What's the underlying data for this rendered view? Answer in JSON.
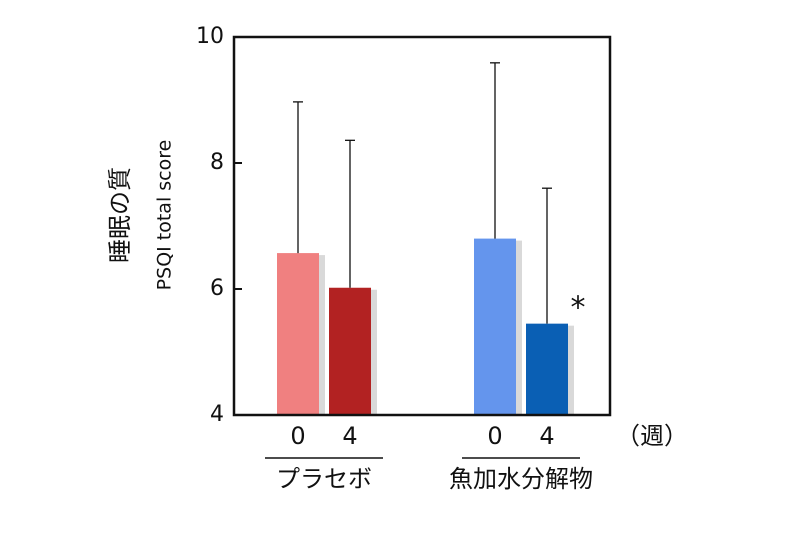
{
  "chart_data": {
    "type": "bar",
    "ylabel_main": "睡眠の質",
    "ylabel_sub": "PSQI total score",
    "ylim": [
      4,
      10
    ],
    "yticks": [
      4,
      6,
      8,
      10
    ],
    "ytick_labels": [
      "4",
      "6",
      "8",
      "10"
    ],
    "x_unit": "（週）",
    "grid": false,
    "groups": [
      {
        "name": "プラセボ",
        "bars": [
          {
            "week": "0",
            "value": 6.57,
            "error_upper": 8.97,
            "color": "#F08080",
            "significance": ""
          },
          {
            "week": "4",
            "value": 6.02,
            "error_upper": 8.36,
            "color": "#B22222",
            "significance": ""
          }
        ]
      },
      {
        "name": "魚加水分解物",
        "bars": [
          {
            "week": "0",
            "value": 6.8,
            "error_upper": 9.59,
            "color": "#6495ED",
            "significance": ""
          },
          {
            "week": "4",
            "value": 5.45,
            "error_upper": 7.6,
            "color": "#0A5FB4",
            "significance": "*"
          }
        ]
      }
    ]
  }
}
